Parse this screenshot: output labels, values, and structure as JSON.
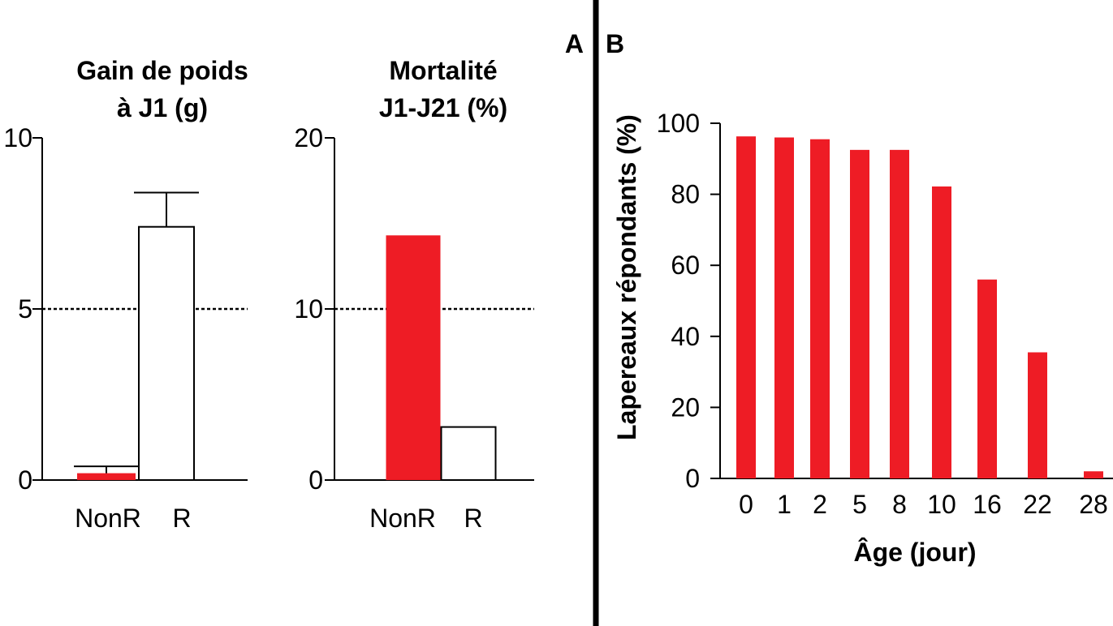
{
  "panels": {
    "a": "A",
    "b": "B"
  },
  "chart_data": [
    {
      "type": "bar",
      "title": "Gain de poids\nà J1 (g)",
      "categories": [
        "NonR",
        "R"
      ],
      "values": [
        0.2,
        7.4
      ],
      "error_upper": [
        0.4,
        8.4
      ],
      "colors": [
        "#ee1c25",
        "#ffffff"
      ],
      "ylim": [
        0,
        10
      ],
      "yticks": [
        0,
        5,
        10
      ],
      "reference_line": 5,
      "xlabel": "",
      "ylabel": ""
    },
    {
      "type": "bar",
      "title": "Mortalité\nJ1-J21 (%)",
      "categories": [
        "NonR",
        "R"
      ],
      "values": [
        14.3,
        3.1
      ],
      "colors": [
        "#ee1c25",
        "#ffffff"
      ],
      "ylim": [
        0,
        20
      ],
      "yticks": [
        0,
        10,
        20
      ],
      "reference_line": 10,
      "xlabel": "",
      "ylabel": ""
    },
    {
      "type": "bar",
      "title": "",
      "categories": [
        "0",
        "1",
        "2",
        "5",
        "8",
        "10",
        "16",
        "22",
        "28"
      ],
      "values": [
        96.3,
        96,
        95.5,
        92.5,
        92.5,
        82.2,
        56,
        35.5,
        2
      ],
      "colors": [
        "#ee1c25"
      ],
      "ylim": [
        0,
        100
      ],
      "yticks": [
        0,
        20,
        40,
        60,
        80,
        100
      ],
      "xlabel": "Âge (jour)",
      "ylabel": "Lapereaux répondants (%)"
    }
  ]
}
